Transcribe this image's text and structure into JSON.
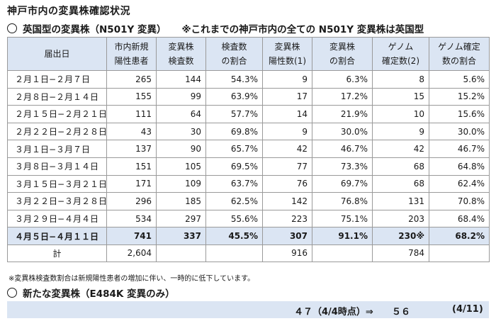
{
  "title": "神戸市内の変異株確認状況",
  "section1": {
    "heading": "英国型の変異株（N501Y 変異）",
    "note": "※これまでの神戸市内の全ての N501Y 変異株は英国型"
  },
  "table": {
    "headers": [
      [
        "届出日"
      ],
      [
        "市内新規",
        "陽性患者"
      ],
      [
        "変異株",
        "検査数"
      ],
      [
        "検査数",
        "の割合"
      ],
      [
        "変異株",
        "陽性数(1)"
      ],
      [
        "変異株",
        "の割合"
      ],
      [
        "ゲノム",
        "確定数(2)"
      ],
      [
        "ゲノム確定",
        "数の割合"
      ]
    ],
    "rows": [
      [
        "２月１日−２月７日",
        "265",
        "144",
        "54.3%",
        "9",
        "6.3%",
        "8",
        "5.6%"
      ],
      [
        "２月８日−２月１４日",
        "155",
        "99",
        "63.9%",
        "17",
        "17.2%",
        "15",
        "15.2%"
      ],
      [
        "２月１５日−２月２１日",
        "111",
        "64",
        "57.7%",
        "14",
        "21.9%",
        "10",
        "15.6%"
      ],
      [
        "２月２２日−２月２８日",
        "43",
        "30",
        "69.8%",
        "9",
        "30.0%",
        "9",
        "30.0%"
      ],
      [
        "３月１日−３月７日",
        "137",
        "90",
        "65.7%",
        "42",
        "46.7%",
        "42",
        "46.7%"
      ],
      [
        "３月８日−３月１４日",
        "151",
        "105",
        "69.5%",
        "77",
        "73.3%",
        "68",
        "64.8%"
      ],
      [
        "３月１５日−３月２１日",
        "171",
        "109",
        "63.7%",
        "76",
        "69.7%",
        "68",
        "62.4%"
      ],
      [
        "３月２２日−３月２８日",
        "296",
        "185",
        "62.5%",
        "142",
        "76.8%",
        "131",
        "70.8%"
      ],
      [
        "３月２９日−４月４日",
        "534",
        "297",
        "55.6%",
        "223",
        "75.1%",
        "203",
        "68.4%"
      ],
      [
        "４月５日−４月１１日",
        "741",
        "337",
        "45.5%",
        "307",
        "91.1%",
        "230※",
        "68.2%"
      ]
    ],
    "total": [
      "計",
      "2,604",
      "",
      "",
      "916",
      "",
      "784",
      ""
    ]
  },
  "footnote": "※変異株検査数割合は新規陽性患者の増加に伴い、一時的に低下しています。",
  "section2": {
    "heading": "新たな変異株（E484K 変異のみ）",
    "value_prev": "４７（4/4時点）⇒",
    "value_now": "５６",
    "date": "(4/11)"
  }
}
